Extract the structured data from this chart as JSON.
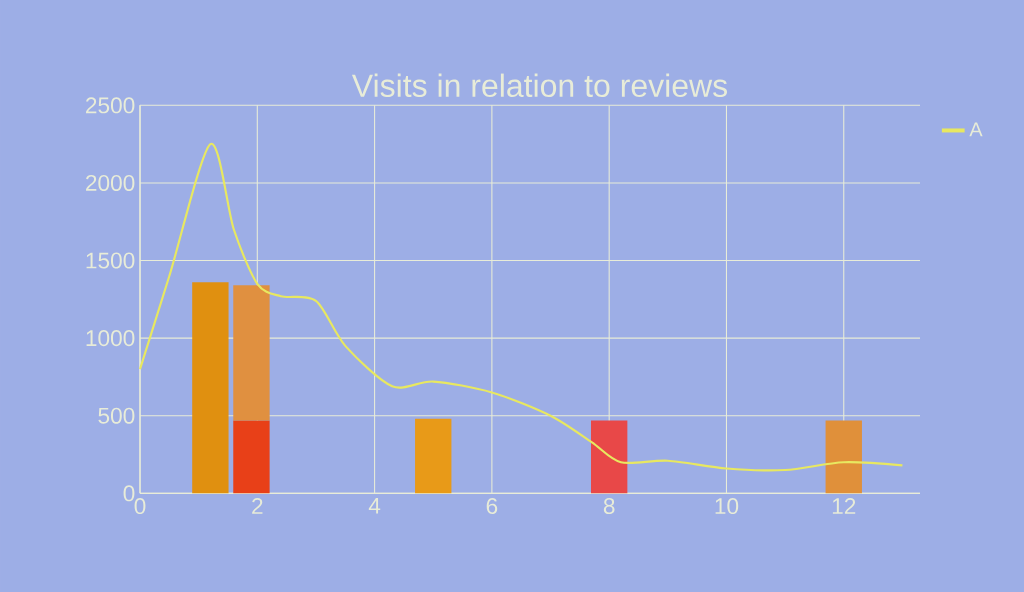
{
  "chart_data": {
    "type": "line",
    "title": "Visits in relation to reviews",
    "xlim": [
      0,
      13.3
    ],
    "ylim": [
      0,
      2500
    ],
    "xticks": [
      0,
      2,
      4,
      6,
      8,
      10,
      12
    ],
    "yticks": [
      0,
      500,
      1000,
      1500,
      2000,
      2500
    ],
    "grid": true,
    "legend": "top right",
    "series": [
      {
        "name": "A",
        "color": "#e8e860",
        "x": [
          0,
          0.5,
          1.2,
          1.6,
          2,
          2.4,
          3,
          3.5,
          4.3,
          5,
          6,
          7,
          7.7,
          8.2,
          9,
          10,
          11,
          12,
          13
        ],
        "values": [
          800,
          1400,
          2250,
          1700,
          1350,
          1270,
          1240,
          950,
          690,
          720,
          650,
          500,
          330,
          200,
          210,
          160,
          150,
          200,
          180
        ]
      },
      {
        "type": "bar",
        "x": [
          1.2,
          1.9,
          5,
          8,
          12
        ],
        "values": [
          1360,
          470,
          480,
          470,
          470
        ],
        "colors": [
          "#e09010",
          "#e84018",
          "#e89a18",
          "#e84848",
          "#e0903a"
        ]
      },
      {
        "type": "bar",
        "x": [
          1.9
        ],
        "base": [
          470
        ],
        "values": [
          870
        ],
        "colors": [
          "#e09040"
        ]
      }
    ]
  }
}
